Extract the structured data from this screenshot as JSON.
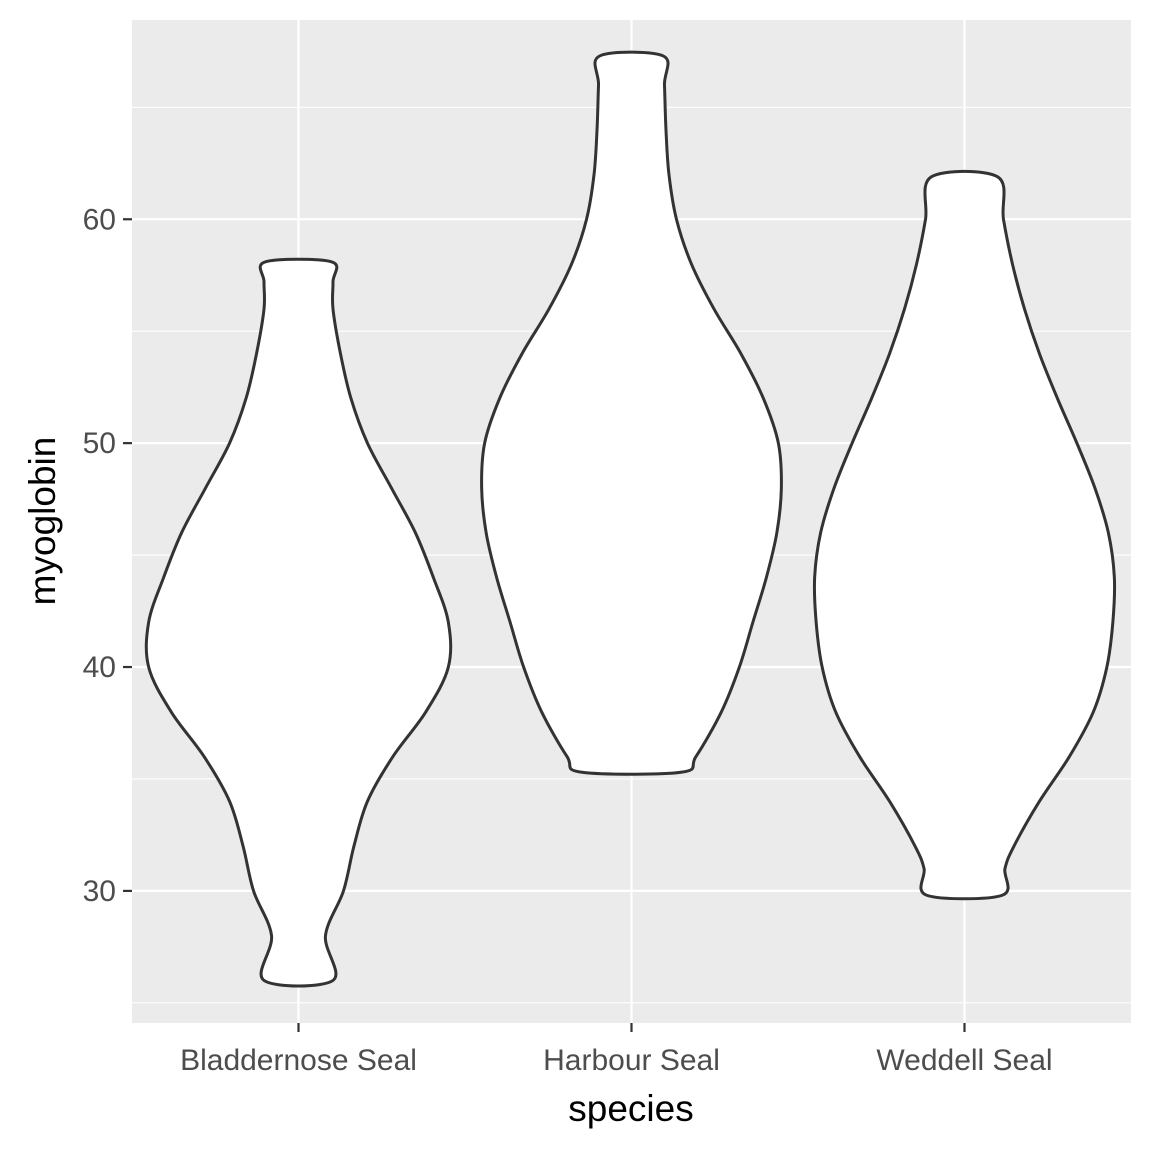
{
  "chart_data": {
    "type": "violin",
    "xlabel": "species",
    "ylabel": "myoglobin",
    "categories": [
      "Bladdernose Seal",
      "Harbour Seal",
      "Weddell Seal"
    ],
    "ylim": [
      24.1,
      68.9
    ],
    "yticks": [
      30,
      40,
      50,
      60
    ],
    "yticks_minor": [
      25,
      35,
      45,
      55,
      65
    ],
    "grid": true,
    "colors": {
      "panel": "#ebebeb",
      "grid": "#ffffff",
      "violin_fill": "#ffffff",
      "violin_stroke": "#333333",
      "tick_label": "#4d4d4d",
      "title": "#000000"
    },
    "series": [
      {
        "category": "Bladdernose Seal",
        "min": 26.0,
        "max": 58.1,
        "density_profile": [
          [
            26.0,
            0.23
          ],
          [
            28.0,
            0.18
          ],
          [
            30.0,
            0.3
          ],
          [
            32.0,
            0.37
          ],
          [
            34.0,
            0.46
          ],
          [
            36.0,
            0.63
          ],
          [
            38.0,
            0.85
          ],
          [
            40.0,
            1.0
          ],
          [
            42.0,
            1.0
          ],
          [
            44.0,
            0.9
          ],
          [
            46.0,
            0.78
          ],
          [
            48.0,
            0.62
          ],
          [
            50.0,
            0.46
          ],
          [
            52.0,
            0.35
          ],
          [
            54.0,
            0.28
          ],
          [
            56.0,
            0.23
          ],
          [
            57.2,
            0.23
          ],
          [
            58.1,
            0.22
          ]
        ]
      },
      {
        "category": "Harbour Seal",
        "min": 35.3,
        "max": 67.3,
        "density_profile": [
          [
            35.3,
            0.33
          ],
          [
            36.0,
            0.43
          ],
          [
            38.0,
            0.6
          ],
          [
            40.0,
            0.72
          ],
          [
            42.0,
            0.81
          ],
          [
            44.0,
            0.9
          ],
          [
            46.0,
            0.97
          ],
          [
            48.0,
            1.0
          ],
          [
            50.0,
            0.98
          ],
          [
            52.0,
            0.88
          ],
          [
            54.0,
            0.73
          ],
          [
            56.0,
            0.55
          ],
          [
            58.0,
            0.4
          ],
          [
            60.0,
            0.3
          ],
          [
            62.0,
            0.25
          ],
          [
            64.0,
            0.23
          ],
          [
            66.0,
            0.22
          ],
          [
            67.3,
            0.21
          ]
        ]
      },
      {
        "category": "Weddell Seal",
        "min": 29.8,
        "max": 61.9,
        "density_profile": [
          [
            29.8,
            0.25
          ],
          [
            31.0,
            0.27
          ],
          [
            32.0,
            0.33
          ],
          [
            34.0,
            0.5
          ],
          [
            36.0,
            0.7
          ],
          [
            38.0,
            0.86
          ],
          [
            40.0,
            0.95
          ],
          [
            42.0,
            0.99
          ],
          [
            44.0,
            1.0
          ],
          [
            46.0,
            0.96
          ],
          [
            48.0,
            0.87
          ],
          [
            50.0,
            0.75
          ],
          [
            52.0,
            0.62
          ],
          [
            54.0,
            0.5
          ],
          [
            56.0,
            0.4
          ],
          [
            58.0,
            0.32
          ],
          [
            60.0,
            0.26
          ],
          [
            61.9,
            0.22
          ]
        ]
      }
    ]
  }
}
